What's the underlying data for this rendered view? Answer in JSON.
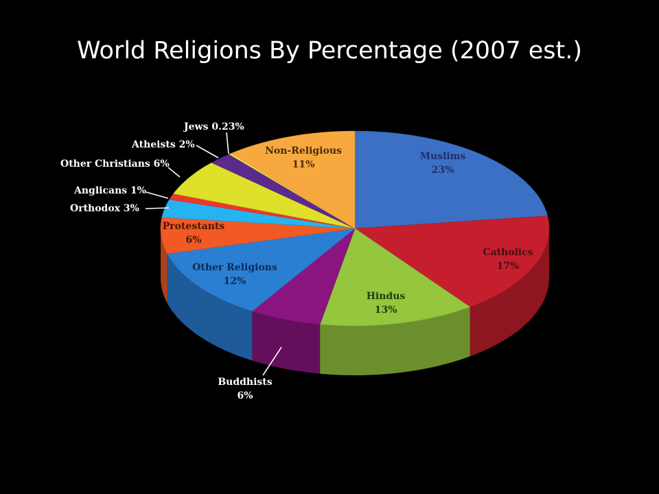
{
  "title": "World Religions By Percentage (2007 est.)",
  "chart_data": {
    "type": "pie",
    "title": "World Religions By Percentage (2007 est.)",
    "slices": [
      {
        "name": "Muslims",
        "value": 23,
        "value_label": "23%",
        "color": "#3b70c4",
        "label_inside": true
      },
      {
        "name": "Catholics",
        "value": 17,
        "value_label": "17%",
        "color": "#c51f2e",
        "label_inside": true
      },
      {
        "name": "Hindus",
        "value": 13,
        "value_label": "13%",
        "color": "#94c63e",
        "label_inside": true
      },
      {
        "name": "Buddhists",
        "value": 6,
        "value_label": "6%",
        "color": "#8b1580",
        "label_inside": false
      },
      {
        "name": "Other Religions",
        "value": 12,
        "value_label": "12%",
        "color": "#2a7fd3",
        "label_inside": true
      },
      {
        "name": "Protestants",
        "value": 6,
        "value_label": "6%",
        "color": "#f15a24",
        "label_inside": true
      },
      {
        "name": "Orthodox",
        "value": 3,
        "value_label": "3%",
        "color": "#27b3ef",
        "label_inside": false
      },
      {
        "name": "Anglicans",
        "value": 1,
        "value_label": "1%",
        "color": "#e8392c",
        "label_inside": false
      },
      {
        "name": "Other Christians",
        "value": 6,
        "value_label": "6%",
        "color": "#dfe02a",
        "label_inside": false
      },
      {
        "name": "Atheists",
        "value": 2,
        "value_label": "2%",
        "color": "#5b2a8c",
        "label_inside": false
      },
      {
        "name": "Jews",
        "value": 0.23,
        "value_label": "0.23%",
        "color": "#f4e04d",
        "label_inside": false
      },
      {
        "name": "Non-Religious",
        "value": 11,
        "value_label": "11%",
        "color": "#f7a940",
        "label_inside": true
      }
    ],
    "legend": "none",
    "start_angle": "12 o'clock",
    "direction": "clockwise"
  }
}
